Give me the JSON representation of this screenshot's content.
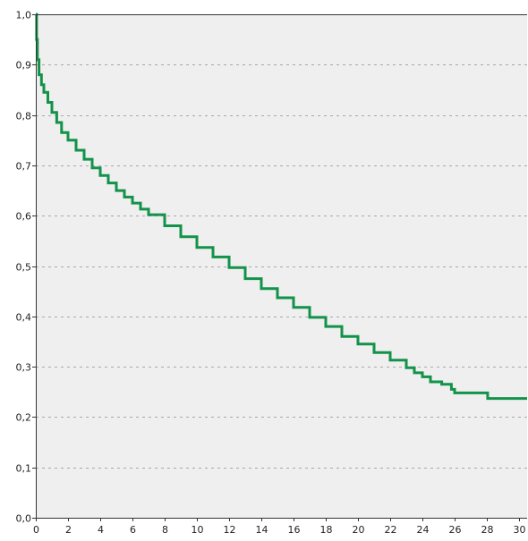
{
  "chart_data": {
    "type": "line",
    "title": "",
    "xlabel": "",
    "ylabel": "",
    "xlim": [
      0,
      30.5
    ],
    "ylim": [
      0,
      1
    ],
    "x_ticks": [
      0,
      2,
      4,
      6,
      8,
      10,
      12,
      14,
      16,
      18,
      20,
      22,
      24,
      26,
      28,
      30
    ],
    "x_tick_labels": [
      "0",
      "2",
      "4",
      "6",
      "8",
      "10",
      "12",
      "14",
      "16",
      "18",
      "20",
      "22",
      "24",
      "26",
      "28",
      "30"
    ],
    "y_ticks": [
      0,
      0.1,
      0.2,
      0.3,
      0.4,
      0.5,
      0.6,
      0.7,
      0.8,
      0.9,
      1.0
    ],
    "y_tick_labels": [
      "0,0",
      "0,1",
      "0,2",
      "0,3",
      "0,4",
      "0,5",
      "0,6",
      "0,7",
      "0,8",
      "0,9",
      "1,0"
    ],
    "grid": "horizontal dashed",
    "plot_background": "#efefef",
    "grid_color": "#a8a8a8",
    "axis_color": "#333333",
    "series": [
      {
        "color": "#13924a",
        "step": true,
        "points": [
          [
            0,
            1.0
          ],
          [
            0.05,
            0.95
          ],
          [
            0.1,
            0.91
          ],
          [
            0.2,
            0.88
          ],
          [
            0.35,
            0.86
          ],
          [
            0.5,
            0.845
          ],
          [
            0.75,
            0.825
          ],
          [
            1,
            0.805
          ],
          [
            1.3,
            0.785
          ],
          [
            1.6,
            0.765
          ],
          [
            2,
            0.75
          ],
          [
            2.5,
            0.73
          ],
          [
            3,
            0.712
          ],
          [
            3.5,
            0.695
          ],
          [
            4,
            0.68
          ],
          [
            4.5,
            0.665
          ],
          [
            5,
            0.65
          ],
          [
            5.5,
            0.637
          ],
          [
            6,
            0.625
          ],
          [
            6.5,
            0.613
          ],
          [
            7,
            0.602
          ],
          [
            8,
            0.58
          ],
          [
            9,
            0.558
          ],
          [
            10,
            0.537
          ],
          [
            11,
            0.518
          ],
          [
            12,
            0.497
          ],
          [
            13,
            0.475
          ],
          [
            14,
            0.455
          ],
          [
            15,
            0.437
          ],
          [
            16,
            0.418
          ],
          [
            17,
            0.398
          ],
          [
            18,
            0.38
          ],
          [
            19,
            0.36
          ],
          [
            20,
            0.345
          ],
          [
            21,
            0.328
          ],
          [
            22,
            0.313
          ],
          [
            23,
            0.298
          ],
          [
            23.5,
            0.288
          ],
          [
            24,
            0.28
          ],
          [
            24.5,
            0.27
          ],
          [
            25.2,
            0.265
          ],
          [
            25.8,
            0.255
          ],
          [
            26,
            0.248
          ],
          [
            28,
            0.248
          ],
          [
            28.05,
            0.237
          ],
          [
            30.5,
            0.237
          ]
        ]
      }
    ]
  }
}
